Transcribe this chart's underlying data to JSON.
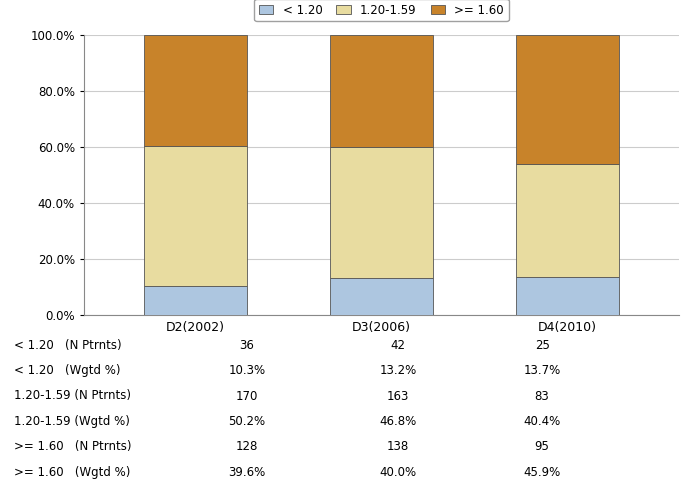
{
  "categories": [
    "D2(2002)",
    "D3(2006)",
    "D4(2010)"
  ],
  "series": [
    {
      "label": "< 1.20",
      "color": "#adc6e0",
      "values": [
        10.3,
        13.2,
        13.7
      ]
    },
    {
      "label": "1.20-1.59",
      "color": "#e8dca0",
      "values": [
        50.2,
        46.8,
        40.4
      ]
    },
    {
      "label": ">= 1.60",
      "color": "#c8832a",
      "values": [
        39.6,
        40.0,
        45.9
      ]
    }
  ],
  "ylim": [
    0,
    100
  ],
  "yticks": [
    0,
    20,
    40,
    60,
    80,
    100
  ],
  "ytick_labels": [
    "0.0%",
    "20.0%",
    "40.0%",
    "60.0%",
    "80.0%",
    "100.0%"
  ],
  "background_color": "#ffffff",
  "grid_color": "#cccccc",
  "bar_width": 0.55,
  "table_row_labels": [
    "< 1.20   (N Ptrnts)",
    "< 1.20   (Wgtd %)",
    "1.20-1.59 (N Ptrnts)",
    "1.20-1.59 (Wgtd %)",
    ">= 1.60   (N Ptrnts)",
    ">= 1.60   (Wgtd %)"
  ],
  "table_data": [
    [
      "36",
      "42",
      "25"
    ],
    [
      "10.3%",
      "13.2%",
      "13.7%"
    ],
    [
      "170",
      "163",
      "83"
    ],
    [
      "50.2%",
      "46.8%",
      "40.4%"
    ],
    [
      "128",
      "138",
      "95"
    ],
    [
      "39.6%",
      "40.0%",
      "45.9%"
    ]
  ]
}
